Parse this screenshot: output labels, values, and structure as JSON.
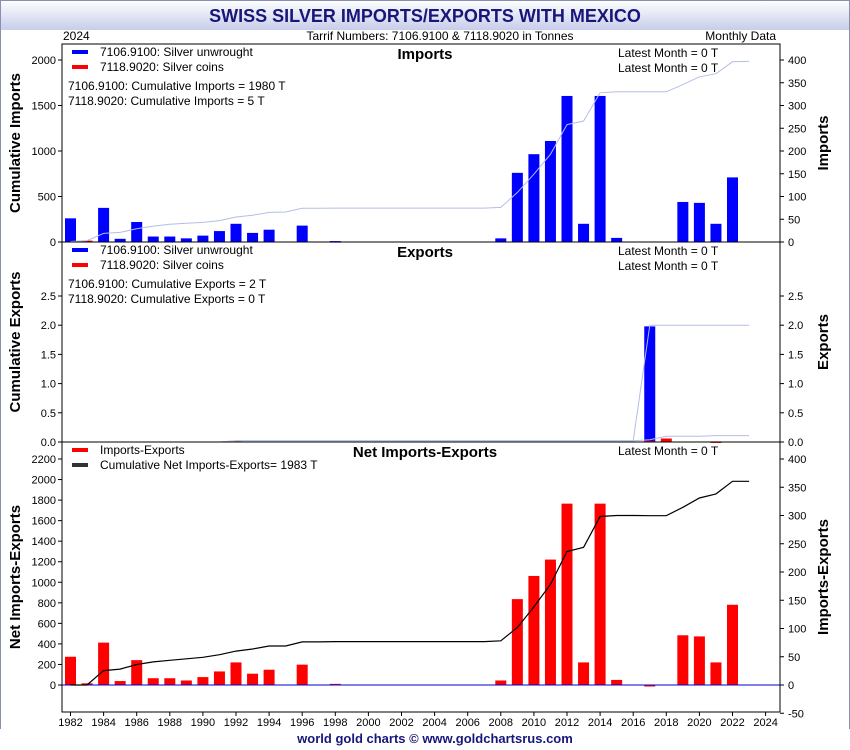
{
  "title": "SWISS SILVER IMPORTS/EXPORTS WITH MEXICO",
  "year_label": "2024",
  "tariff_label": "Tarrif Numbers: 7106.9100 & 7118.9020 in Tonnes",
  "monthly_label": "Monthly Data",
  "footer": "world gold charts © www.goldchartsrus.com",
  "colors": {
    "header_top": "#ffffff",
    "header_bottom": "#c7cdea",
    "title": "#18167a",
    "blue": "#0000ff",
    "red": "#ff0000",
    "cum_blue": "#b4bee6",
    "cum_black": "#444444",
    "zero_line": "#0000cc"
  },
  "x_ticks": [
    "1982",
    "1984",
    "1986",
    "1988",
    "1990",
    "1992",
    "1994",
    "1996",
    "1998",
    "2000",
    "2002",
    "2004",
    "2006",
    "2008",
    "2010",
    "2012",
    "2014",
    "2016",
    "2018",
    "2020",
    "2022",
    "2024"
  ],
  "chart_data": [
    {
      "type": "bar",
      "panel": "imports",
      "title": "Imports",
      "ylabel_left": "Cumulative Imports",
      "ylabel_right": "Imports",
      "left_ticks": [
        "0",
        "500",
        "1000",
        "1500",
        "2000"
      ],
      "right_ticks": [
        "0",
        "50",
        "100",
        "150",
        "200",
        "250",
        "300",
        "350",
        "400"
      ],
      "left_range": [
        0,
        2000
      ],
      "right_range": [
        0,
        400
      ],
      "legend": [
        {
          "color": "blue",
          "label": "7106.9100: Silver unwrought"
        },
        {
          "color": "red",
          "label": "7118.9020: Silver coins"
        }
      ],
      "cumulative_notes": [
        "7106.9100: Cumulative Imports = 1980 T",
        "7118.9020: Cumulative Imports = 5 T"
      ],
      "latest": [
        "Latest Month = 0 T",
        "Latest Month = 0 T"
      ],
      "x": [
        1982,
        1983,
        1984,
        1985,
        1986,
        1987,
        1988,
        1989,
        1990,
        1991,
        1992,
        1993,
        1994,
        1995,
        1996,
        1997,
        1998,
        1999,
        2000,
        2001,
        2002,
        2003,
        2004,
        2005,
        2006,
        2007,
        2008,
        2009,
        2010,
        2011,
        2012,
        2013,
        2014,
        2015,
        2016,
        2017,
        2018,
        2019,
        2020,
        2021,
        2022,
        2023
      ],
      "series": [
        {
          "name": "7106.9100: Silver unwrought",
          "color": "blue",
          "values": [
            52,
            0,
            75,
            7,
            44,
            12,
            12,
            8,
            14,
            24,
            40,
            20,
            27,
            0,
            36,
            0,
            2,
            0,
            0,
            0,
            0,
            0,
            0,
            0,
            0,
            0,
            8,
            152,
            193,
            222,
            321,
            40,
            321,
            9,
            0,
            0,
            0,
            88,
            86,
            40,
            142,
            0
          ]
        },
        {
          "name": "7118.9020: Silver coins",
          "color": "red",
          "values": [
            0,
            3,
            0,
            0,
            0,
            0,
            0,
            0,
            0,
            0,
            0,
            0,
            0,
            0,
            0,
            0,
            0,
            0,
            0,
            0,
            0,
            0,
            0,
            0,
            0,
            0,
            0,
            0,
            0,
            0,
            0,
            0,
            0,
            0,
            0,
            0,
            0,
            0,
            0,
            0,
            0,
            0
          ]
        },
        {
          "name": "Cumulative",
          "color": "cum_blue",
          "type": "line",
          "values": [
            5,
            15,
            95,
            105,
            145,
            175,
            195,
            205,
            215,
            235,
            275,
            295,
            325,
            330,
            370,
            370,
            372,
            372,
            372,
            372,
            372,
            372,
            372,
            372,
            372,
            372,
            380,
            545,
            745,
            965,
            1290,
            1330,
            1640,
            1650,
            1650,
            1650,
            1650,
            1730,
            1815,
            1850,
            1980,
            1985
          ]
        }
      ]
    },
    {
      "type": "bar",
      "panel": "exports",
      "title": "Exports",
      "ylabel_left": "Cumulative Exports",
      "ylabel_right": "Exports",
      "left_ticks": [
        "0.0",
        "0.5",
        "1.0",
        "1.5",
        "2.0",
        "2.5"
      ],
      "right_ticks": [
        "0.0",
        "0.5",
        "1.0",
        "1.5",
        "2.0",
        "2.5"
      ],
      "left_range": [
        0,
        2.5
      ],
      "right_range": [
        0,
        2.5
      ],
      "legend": [
        {
          "color": "blue",
          "label": "7106.9100: Silver unwrought"
        },
        {
          "color": "red",
          "label": "7118.9020: Silver coins"
        }
      ],
      "cumulative_notes": [
        "7106.9100: Cumulative Exports = 2 T",
        "7118.9020: Cumulative Exports = 0 T"
      ],
      "latest": [
        "Latest Month = 0 T",
        "Latest Month = 0 T"
      ],
      "x": [
        1982,
        1983,
        1984,
        1985,
        1986,
        1987,
        1988,
        1989,
        1990,
        1991,
        1992,
        1993,
        1994,
        1995,
        1996,
        1997,
        1998,
        1999,
        2000,
        2001,
        2002,
        2003,
        2004,
        2005,
        2006,
        2007,
        2008,
        2009,
        2010,
        2011,
        2012,
        2013,
        2014,
        2015,
        2016,
        2017,
        2018,
        2019,
        2020,
        2021,
        2022,
        2023
      ],
      "series": [
        {
          "name": "7106.9100: Silver unwrought",
          "color": "blue",
          "values": [
            0,
            0,
            0,
            0,
            0,
            0,
            0,
            0,
            0,
            0,
            0,
            0,
            0,
            0,
            0,
            0,
            0,
            0,
            0,
            0,
            0,
            0,
            0,
            0,
            0,
            0,
            0,
            0,
            0,
            0,
            0,
            0,
            0,
            0,
            0,
            1.98,
            0,
            0,
            0,
            0,
            0,
            0
          ]
        },
        {
          "name": "7118.9020: Silver coins",
          "color": "red",
          "values": [
            0,
            0,
            0,
            0,
            0,
            0,
            0,
            0,
            0,
            0,
            0.02,
            0,
            0,
            0,
            0,
            0,
            0,
            0,
            0,
            0,
            0,
            0,
            0,
            0,
            0,
            0,
            0,
            0,
            0,
            0,
            0,
            0,
            0,
            0,
            0,
            0.02,
            0.06,
            0,
            0,
            0.01,
            0,
            0
          ]
        },
        {
          "name": "Cumulative",
          "color": "cum_blue",
          "type": "line",
          "values": [
            0,
            0,
            0,
            0,
            0,
            0,
            0,
            0,
            0,
            0,
            0.02,
            0.02,
            0.02,
            0.02,
            0.02,
            0.02,
            0.02,
            0.02,
            0.02,
            0.02,
            0.02,
            0.02,
            0.02,
            0.02,
            0.02,
            0.02,
            0.02,
            0.02,
            0.02,
            0.02,
            0.02,
            0.02,
            0.02,
            0.02,
            0.02,
            2.0,
            2.0,
            2.0,
            2.0,
            2.0,
            2.0,
            2.0
          ]
        },
        {
          "name": "Cumulative coins",
          "color": "cum_blue",
          "type": "line",
          "values": [
            0,
            0,
            0,
            0,
            0,
            0,
            0,
            0,
            0,
            0,
            0.02,
            0.02,
            0.02,
            0.02,
            0.02,
            0.02,
            0.02,
            0.02,
            0.02,
            0.02,
            0.02,
            0.02,
            0.02,
            0.02,
            0.02,
            0.02,
            0.02,
            0.02,
            0.02,
            0.02,
            0.02,
            0.02,
            0.02,
            0.02,
            0.02,
            0.04,
            0.1,
            0.1,
            0.1,
            0.11,
            0.11,
            0.11
          ]
        }
      ]
    },
    {
      "type": "bar",
      "panel": "net",
      "title": "Net Imports-Exports",
      "ylabel_left": "Net Imports-Exports",
      "ylabel_right": "Imports-Exports",
      "left_ticks": [
        "0",
        "200",
        "400",
        "600",
        "800",
        "1000",
        "1200",
        "1400",
        "1600",
        "1800",
        "2000",
        "2200"
      ],
      "right_ticks": [
        "-50",
        "0",
        "50",
        "100",
        "150",
        "200",
        "250",
        "300",
        "350",
        "400"
      ],
      "left_range": [
        0,
        2200
      ],
      "right_range": [
        -50,
        400
      ],
      "legend": [
        {
          "color": "red",
          "label": "Imports-Exports"
        },
        {
          "color": "black",
          "label": "Cumulative Net Imports-Exports= 1983 T"
        }
      ],
      "latest": [
        "Latest Month = 0 T"
      ],
      "x": [
        1982,
        1983,
        1984,
        1985,
        1986,
        1987,
        1988,
        1989,
        1990,
        1991,
        1992,
        1993,
        1994,
        1995,
        1996,
        1997,
        1998,
        1999,
        2000,
        2001,
        2002,
        2003,
        2004,
        2005,
        2006,
        2007,
        2008,
        2009,
        2010,
        2011,
        2012,
        2013,
        2014,
        2015,
        2016,
        2017,
        2018,
        2019,
        2020,
        2021,
        2022,
        2023
      ],
      "series": [
        {
          "name": "Imports-Exports",
          "color": "red",
          "values": [
            50,
            3,
            75,
            7,
            44,
            12,
            12,
            8,
            14,
            24,
            40,
            20,
            27,
            0,
            36,
            0,
            2,
            0,
            0,
            0,
            0,
            0,
            0,
            0,
            0,
            0,
            8,
            152,
            193,
            222,
            321,
            40,
            321,
            9,
            0,
            -2,
            0,
            88,
            86,
            40,
            142,
            0
          ]
        },
        {
          "name": "Cumulative Net Imports-Exports",
          "color": "black",
          "type": "line",
          "values": [
            0,
            0,
            140,
            155,
            200,
            225,
            240,
            255,
            270,
            295,
            330,
            350,
            380,
            380,
            420,
            420,
            422,
            422,
            422,
            422,
            422,
            422,
            422,
            422,
            422,
            422,
            430,
            560,
            760,
            980,
            1300,
            1340,
            1640,
            1650,
            1650,
            1648,
            1648,
            1730,
            1820,
            1860,
            1983,
            1983
          ]
        }
      ]
    }
  ]
}
